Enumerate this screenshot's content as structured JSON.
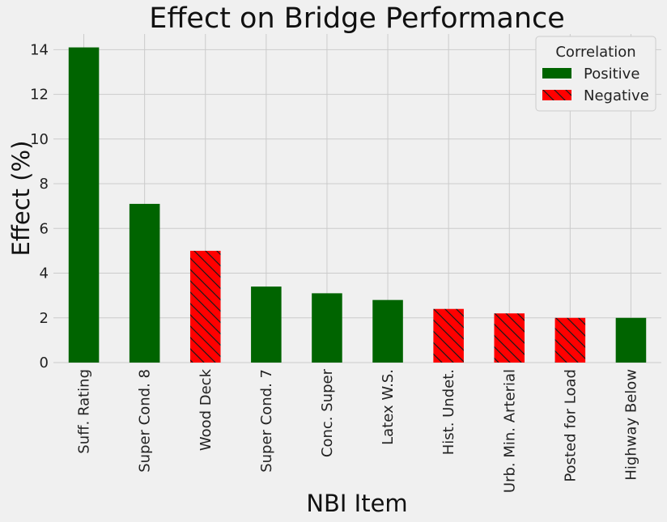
{
  "chart_data": {
    "type": "bar",
    "title": "Effect on Bridge Performance",
    "xlabel": "NBI Item",
    "ylabel": "Effect (%)",
    "ylim": [
      0,
      14.7
    ],
    "yticks": [
      0,
      2,
      4,
      6,
      8,
      10,
      12,
      14
    ],
    "grid": true,
    "categories": [
      "Suff. Rating",
      "Super Cond. 8",
      "Wood Deck",
      "Super Cond. 7",
      "Conc. Super",
      "Latex W.S.",
      "Hist. Undet.",
      "Urb. Min. Arterial",
      "Posted for Load",
      "Highway Below"
    ],
    "values": [
      14.1,
      7.1,
      5.0,
      3.4,
      3.1,
      2.8,
      2.4,
      2.2,
      2.0,
      2.0
    ],
    "correlation": [
      "Positive",
      "Positive",
      "Negative",
      "Positive",
      "Positive",
      "Positive",
      "Negative",
      "Negative",
      "Negative",
      "Positive"
    ],
    "legend": {
      "title": "Correlation",
      "placement": "top-right",
      "entries": [
        {
          "name": "Positive",
          "color": "#006400",
          "hatch": false
        },
        {
          "name": "Negative",
          "color": "#ff0000",
          "hatch": true
        }
      ]
    }
  }
}
